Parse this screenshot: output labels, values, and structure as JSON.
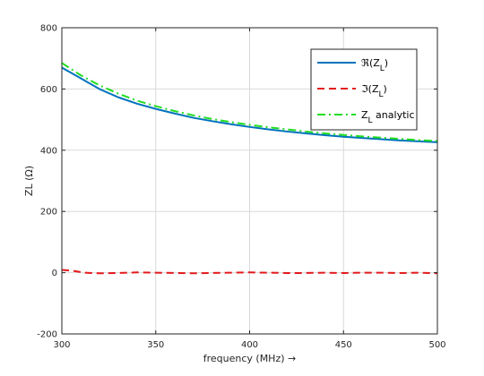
{
  "chart_data": {
    "type": "line",
    "title": "",
    "xlabel": "frequency (MHz) →",
    "ylabel": "ZL (Ω)",
    "xlim": [
      300,
      500
    ],
    "ylim": [
      -200,
      800
    ],
    "xticks": [
      300,
      350,
      400,
      450,
      500
    ],
    "yticks": [
      -200,
      0,
      200,
      400,
      600,
      800
    ],
    "grid": true,
    "legend_position": "top-right",
    "series": [
      {
        "name": "ℜ(Z_L)",
        "legend_main": "ℜ(Z",
        "legend_sub": "L",
        "legend_tail": ")",
        "color": "#0072bd",
        "style": "solid",
        "x": [
          300,
          310,
          320,
          330,
          340,
          350,
          360,
          370,
          380,
          390,
          400,
          410,
          420,
          430,
          440,
          450,
          460,
          470,
          480,
          490,
          500
        ],
        "y": [
          670,
          635,
          600,
          573,
          552,
          535,
          520,
          506,
          495,
          485,
          476,
          468,
          461,
          455,
          449,
          444,
          440,
          436,
          432,
          429,
          426
        ]
      },
      {
        "name": "ℑ(Z_L)",
        "legend_main": "ℑ(Z",
        "legend_sub": "L",
        "legend_tail": ")",
        "color": "#e3191c",
        "style": "dashed",
        "x": [
          300,
          306,
          312,
          320,
          330,
          340,
          350,
          360,
          370,
          380,
          390,
          400,
          410,
          420,
          430,
          440,
          450,
          460,
          470,
          480,
          490,
          500
        ],
        "y": [
          9,
          6,
          0,
          -2,
          -1,
          1,
          0,
          -1,
          -2,
          -1,
          0,
          1,
          0,
          -1,
          -1,
          0,
          -1,
          0,
          0,
          -1,
          0,
          -2
        ]
      },
      {
        "name": "Z_L analytic",
        "legend_main": "Z",
        "legend_sub": "L",
        "legend_tail": " analytic",
        "color": "#22dd22",
        "style": "dashdot",
        "x": [
          300,
          310,
          320,
          330,
          340,
          350,
          360,
          370,
          380,
          390,
          400,
          410,
          420,
          430,
          440,
          450,
          460,
          470,
          480,
          490,
          500
        ],
        "y": [
          685,
          645,
          612,
          585,
          562,
          544,
          528,
          514,
          502,
          492,
          483,
          475,
          468,
          461,
          455,
          450,
          445,
          441,
          437,
          433,
          430
        ]
      }
    ]
  }
}
